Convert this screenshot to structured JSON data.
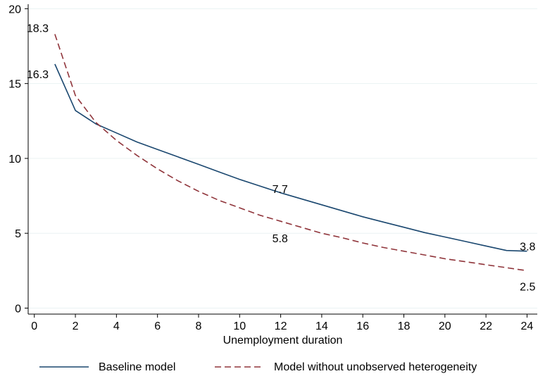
{
  "chart_data": {
    "type": "line",
    "xlabel": "Unemployment duration",
    "ylabel": "",
    "title": "",
    "xlim": [
      -0.3,
      24.5
    ],
    "ylim": [
      -0.4,
      20.3
    ],
    "xticks": [
      0,
      2,
      4,
      6,
      8,
      10,
      12,
      14,
      16,
      18,
      20,
      22,
      24
    ],
    "yticks": [
      0,
      5,
      10,
      15,
      20
    ],
    "grid": true,
    "legend_position": "bottom",
    "series": [
      {
        "name": "Baseline model",
        "color": "#1a476f",
        "style": "solid",
        "x": [
          1,
          2,
          3,
          4,
          5,
          6,
          7,
          8,
          9,
          10,
          11,
          12,
          13,
          14,
          15,
          16,
          17,
          18,
          19,
          20,
          21,
          22,
          23,
          24
        ],
        "values": [
          16.3,
          13.2,
          12.3,
          11.7,
          11.1,
          10.6,
          10.1,
          9.6,
          9.1,
          8.6,
          8.15,
          7.7,
          7.3,
          6.9,
          6.5,
          6.1,
          5.75,
          5.4,
          5.05,
          4.75,
          4.45,
          4.15,
          3.85,
          3.8
        ],
        "labels": [
          {
            "x": 1,
            "y": 16.3,
            "text": "16.3"
          },
          {
            "x": 12,
            "y": 7.7,
            "text": "7.7"
          },
          {
            "x": 24,
            "y": 3.8,
            "text": "3.8"
          }
        ]
      },
      {
        "name": "Model without unobserved heterogeneity",
        "color": "#90353b",
        "style": "dashed",
        "x": [
          1,
          2,
          3,
          4,
          5,
          6,
          7,
          8,
          9,
          10,
          11,
          12,
          13,
          14,
          15,
          16,
          17,
          18,
          19,
          20,
          21,
          22,
          23,
          24
        ],
        "values": [
          18.3,
          14.2,
          12.4,
          11.2,
          10.2,
          9.3,
          8.5,
          7.8,
          7.2,
          6.7,
          6.2,
          5.8,
          5.4,
          5.0,
          4.7,
          4.35,
          4.05,
          3.8,
          3.55,
          3.3,
          3.1,
          2.9,
          2.7,
          2.5
        ],
        "labels": [
          {
            "x": 1,
            "y": 18.3,
            "text": "18.3"
          },
          {
            "x": 12,
            "y": 5.8,
            "text": "5.8"
          },
          {
            "x": 24,
            "y": 2.5,
            "text": "2.5"
          }
        ]
      }
    ]
  }
}
